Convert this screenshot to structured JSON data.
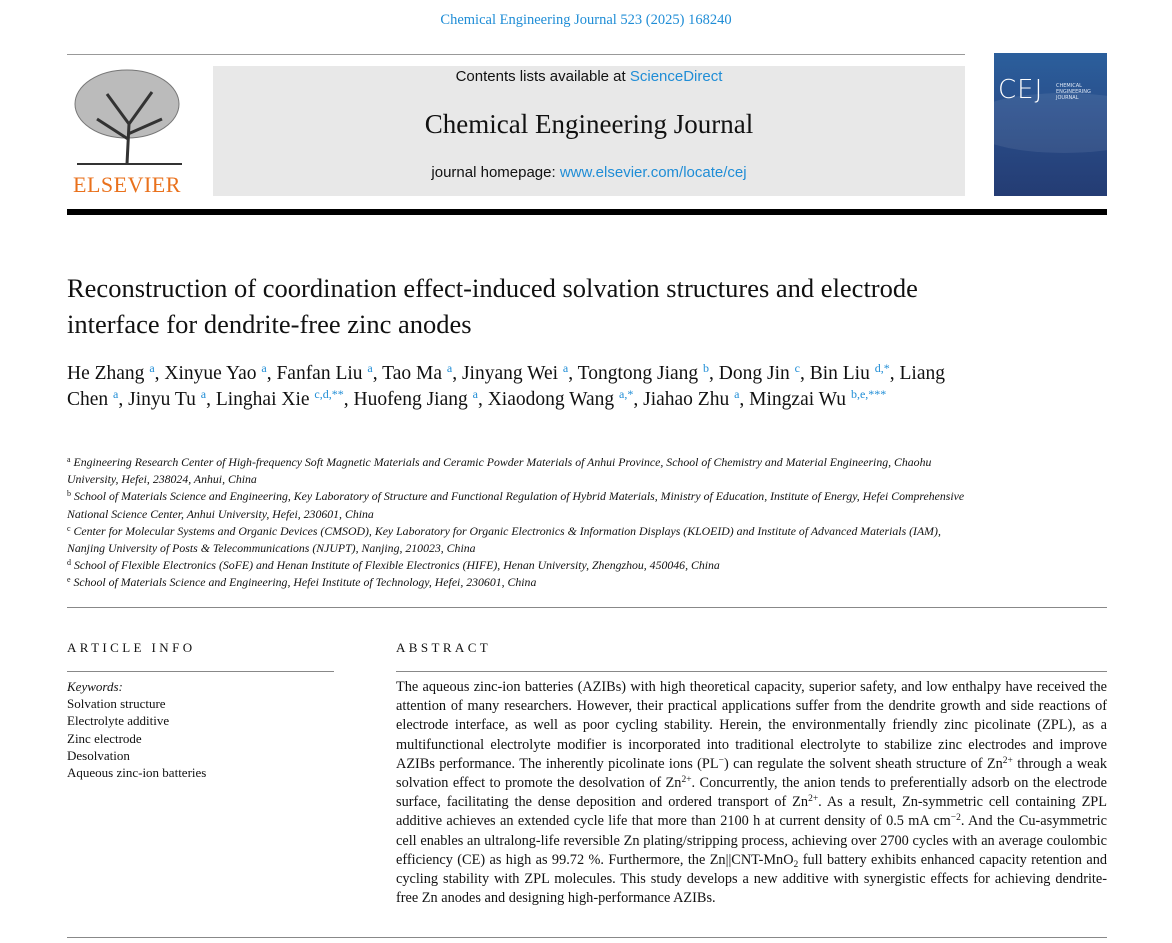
{
  "header": {
    "journal_ref": "Chemical Engineering Journal 523 (2025) 168240",
    "contents_prefix": "Contents lists available at ",
    "contents_link": "ScienceDirect",
    "journal_title": "Chemical Engineering Journal",
    "homepage_prefix": "journal homepage: ",
    "homepage_link": "www.elsevier.com/locate/cej",
    "publisher_logo": "ELSEVIER",
    "cover_logo": "CEJ",
    "cover_subtitle": "CHEMICAL ENGINEERING JOURNAL"
  },
  "article": {
    "title": "Reconstruction of coordination effect-induced solvation structures and electrode interface for dendrite-free zinc anodes",
    "authors": [
      {
        "name": "He Zhang",
        "aff": "a"
      },
      {
        "name": "Xinyue Yao",
        "aff": "a"
      },
      {
        "name": "Fanfan Liu",
        "aff": "a"
      },
      {
        "name": "Tao Ma",
        "aff": "a"
      },
      {
        "name": "Jinyang Wei",
        "aff": "a"
      },
      {
        "name": "Tongtong Jiang",
        "aff": "b"
      },
      {
        "name": "Dong Jin",
        "aff": "c"
      },
      {
        "name": "Bin Liu",
        "aff": "d,*"
      },
      {
        "name": "Liang Chen",
        "aff": "a"
      },
      {
        "name": "Jinyu Tu",
        "aff": "a"
      },
      {
        "name": "Linghai Xie",
        "aff": "c,d,**"
      },
      {
        "name": "Huofeng Jiang",
        "aff": "a"
      },
      {
        "name": "Xiaodong Wang",
        "aff": "a,*"
      },
      {
        "name": "Jiahao Zhu",
        "aff": "a"
      },
      {
        "name": "Mingzai Wu",
        "aff": "b,e,***"
      }
    ],
    "affiliations": [
      {
        "key": "a",
        "text": "Engineering Research Center of High-frequency Soft Magnetic Materials and Ceramic Powder Materials of Anhui Province, School of Chemistry and Material Engineering, Chaohu University, Hefei, 238024, Anhui, China"
      },
      {
        "key": "b",
        "text": "School of Materials Science and Engineering, Key Laboratory of Structure and Functional Regulation of Hybrid Materials, Ministry of Education, Institute of Energy, Hefei Comprehensive National Science Center, Anhui University, Hefei, 230601, China"
      },
      {
        "key": "c",
        "text": "Center for Molecular Systems and Organic Devices (CMSOD), Key Laboratory for Organic Electronics & Information Displays (KLOEID) and Institute of Advanced Materials (IAM), Nanjing University of Posts & Telecommunications (NJUPT), Nanjing, 210023, China"
      },
      {
        "key": "d",
        "text": "School of Flexible Electronics (SoFE) and Henan Institute of Flexible Electronics (HIFE), Henan University, Zhengzhou, 450046, China"
      },
      {
        "key": "e",
        "text": "School of Materials Science and Engineering, Hefei Institute of Technology, Hefei, 230601, China"
      }
    ]
  },
  "article_info": {
    "heading": "ARTICLE INFO",
    "keywords_label": "Keywords:",
    "keywords": [
      "Solvation structure",
      "Electrolyte additive",
      "Zinc electrode",
      "Desolvation",
      "Aqueous zinc-ion batteries"
    ]
  },
  "abstract": {
    "heading": "ABSTRACT",
    "segments": [
      {
        "t": "The aqueous zinc-ion batteries (AZIBs) with high theoretical capacity, superior safety, and low enthalpy have received the attention of many researchers. However, their practical applications suffer from the dendrite growth and side reactions of electrode interface, as well as poor cycling stability. Herein, the environmentally friendly zinc picolinate (ZPL), as a multifunctional electrolyte modifier is incorporated into traditional electrolyte to stabilize zinc electrodes and improve AZIBs performance. The inherently picolinate ions (PL"
      },
      {
        "t": "−",
        "s": "sup"
      },
      {
        "t": ") can regulate the solvent sheath structure of Zn"
      },
      {
        "t": "2+",
        "s": "sup"
      },
      {
        "t": " through a weak solvation effect to promote the desolvation of Zn"
      },
      {
        "t": "2+",
        "s": "sup"
      },
      {
        "t": ". Concurrently, the anion tends to preferentially adsorb on the electrode surface, facilitating the dense deposition and ordered transport of Zn"
      },
      {
        "t": "2+",
        "s": "sup"
      },
      {
        "t": ". As a result, Zn-symmetric cell containing ZPL additive achieves an extended cycle life that more than 2100 h at current density of 0.5 mA cm"
      },
      {
        "t": "−2",
        "s": "sup"
      },
      {
        "t": ". And the Cu-asymmetric cell enables an ultralong-life reversible Zn plating/stripping process, achieving over 2700 cycles with an average coulombic efficiency (CE) as high as 99.72 %. Furthermore, the Zn||CNT-MnO"
      },
      {
        "t": "2",
        "s": "sub"
      },
      {
        "t": " full battery exhibits enhanced capacity retention and cycling stability with ZPL molecules. This study develops a new additive with synergistic effects for achieving dendrite-free Zn anodes and designing high-performance AZIBs."
      }
    ]
  },
  "colors": {
    "link": "#1f8dd6",
    "elsevier_orange": "#e9711c",
    "header_box": "#e8e8e8",
    "cover_blue": "#2a4f8c"
  }
}
